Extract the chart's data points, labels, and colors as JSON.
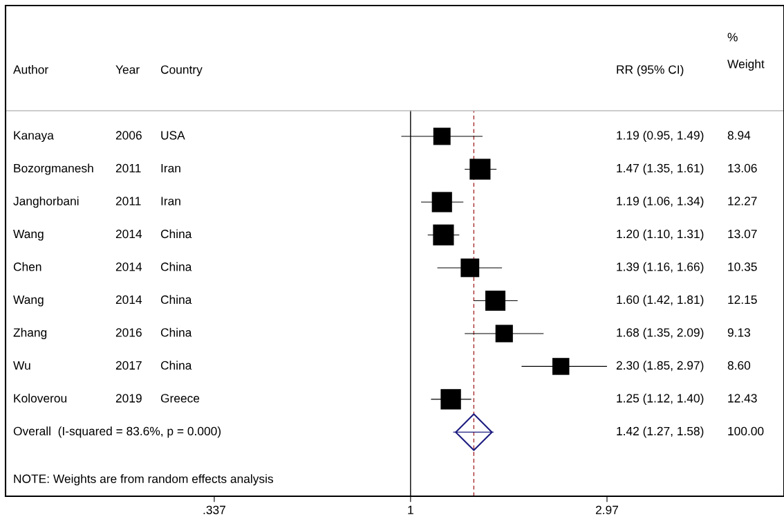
{
  "chart_data": {
    "type": "scatter",
    "orientation": "horizontal",
    "log": "x",
    "grid": false,
    "tick_labels": "x",
    "categories": [
      "Kanaya",
      "Bozorgmanesh",
      "Janghorbani",
      "Wang",
      "Chen",
      "Wang",
      "Zhang",
      "Wu",
      "Koloverou",
      "Overall  (I-squared = 83.6%, p = 0.000)"
    ],
    "series": [
      {
        "type": "scatter",
        "marker": "square",
        "color": "#000000",
        "values": [
          1.19,
          1.47,
          1.19,
          1.2,
          1.39,
          1.6,
          1.68,
          2.3,
          1.25,
          null
        ],
        "errors": [
          [
            0.95,
            1.49
          ],
          [
            1.35,
            1.61
          ],
          [
            1.06,
            1.34
          ],
          [
            1.1,
            1.31
          ],
          [
            1.16,
            1.66
          ],
          [
            1.42,
            1.81
          ],
          [
            1.35,
            2.09
          ],
          [
            1.85,
            2.97
          ],
          [
            1.12,
            1.4
          ],
          null
        ]
      },
      {
        "type": "scatter",
        "marker": "diamond",
        "color": "#1c1c80",
        "values": [
          null,
          null,
          null,
          null,
          null,
          null,
          null,
          null,
          null,
          1.42
        ],
        "errors": [
          null,
          null,
          null,
          null,
          null,
          null,
          null,
          null,
          null,
          [
            1.27,
            1.58
          ]
        ]
      }
    ],
    "value_labels": [
      "1.19 (0.95, 1.49)",
      "1.47 (1.35, 1.61)",
      "1.19 (1.06, 1.34)",
      "1.20 (1.10, 1.31)",
      "1.39 (1.16, 1.66)",
      "1.60 (1.42, 1.81)",
      "1.68 (1.35, 2.09)",
      "2.30 (1.85, 2.97)",
      "1.25 (1.12, 1.40)",
      "1.42 (1.27, 1.58)"
    ],
    "ref_lines": [
      {
        "axis": "x",
        "value": 1,
        "color": "#000000",
        "line_style": "solid"
      },
      {
        "axis": "x",
        "value": 1.42,
        "color": "#a52a2a",
        "line_style": "dashed"
      }
    ],
    "xlim": [
      0.106,
      7.92
    ],
    "xticks": [
      {
        "value": 0.337,
        "label": ".337"
      },
      1,
      2.97
    ],
    "annotations": [
      "Author",
      "Year",
      "Country",
      "RR (95% CI)",
      "%\nWeight",
      "2006",
      "2011",
      "2011",
      "2014",
      "2014",
      "2014",
      "2016",
      "2017",
      "2019",
      "USA",
      "Iran",
      "Iran",
      "China",
      "China",
      "China",
      "China",
      "China",
      "Greece",
      "8.94",
      "13.06",
      "12.27",
      "13.07",
      "10.35",
      "12.15",
      "9.13",
      "8.60",
      "12.43",
      "100.00",
      "NOTE: Weights are from random effects analysis"
    ]
  }
}
